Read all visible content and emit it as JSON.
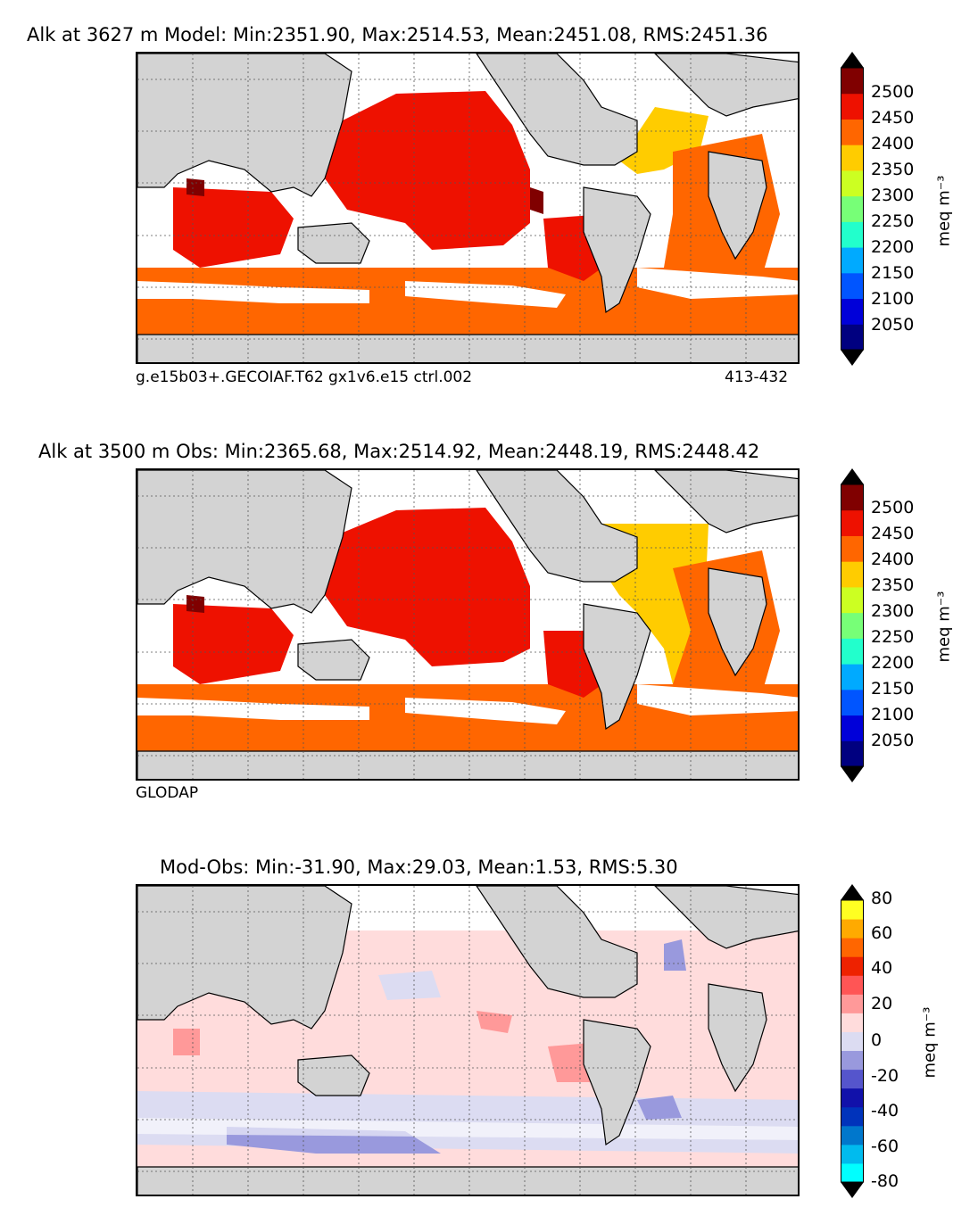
{
  "panels": [
    {
      "title": "Alk at 3627 m Model: Min:2351.90, Max:2514.53, Mean:2451.08, RMS:2451.36",
      "caption_left": "g.e15b03+.GECOIAF.T62 gx1v6.e15 ctrl.002",
      "caption_right": "413-432",
      "colorbar": {
        "unit": "meq m⁻³",
        "ticks": [
          "2500",
          "2450",
          "2400",
          "2350",
          "2300",
          "2250",
          "2200",
          "2150",
          "2100",
          "2050"
        ],
        "colors": [
          "#000080",
          "#0000d9",
          "#0055ff",
          "#00aaff",
          "#22ffcc",
          "#77ff77",
          "#ccff22",
          "#ffcc00",
          "#ff6600",
          "#ee1100",
          "#800000"
        ]
      }
    },
    {
      "title": "Alk at 3500 m Obs: Min:2365.68, Max:2514.92, Mean:2448.19, RMS:2448.42",
      "caption_left": "GLODAP",
      "caption_right": "",
      "colorbar": {
        "unit": "meq m⁻³",
        "ticks": [
          "2500",
          "2450",
          "2400",
          "2350",
          "2300",
          "2250",
          "2200",
          "2150",
          "2100",
          "2050"
        ],
        "colors": [
          "#000080",
          "#0000d9",
          "#0055ff",
          "#00aaff",
          "#22ffcc",
          "#77ff77",
          "#ccff22",
          "#ffcc00",
          "#ff6600",
          "#ee1100",
          "#800000"
        ]
      }
    },
    {
      "title": "Mod-Obs: Min:-31.90, Max:29.03, Mean:1.53, RMS:5.30",
      "caption_left": "",
      "caption_right": "",
      "colorbar": {
        "unit": "meq m⁻³",
        "ticks": [
          "80",
          "60",
          "40",
          "20",
          "0",
          "-20",
          "-40",
          "-60",
          "-80"
        ],
        "colors": [
          "#00ffff",
          "#00bbee",
          "#0077cc",
          "#0033bb",
          "#1111aa",
          "#5555cc",
          "#9999dd",
          "#dcdcf2",
          "#ffdcdc",
          "#ff9999",
          "#ff5555",
          "#ee2200",
          "#ff6600",
          "#ffaa00",
          "#ffff22"
        ]
      }
    }
  ],
  "map_colors": {
    "land": "#d3d3d3",
    "coast": "#000000",
    "grid": "#555555"
  }
}
